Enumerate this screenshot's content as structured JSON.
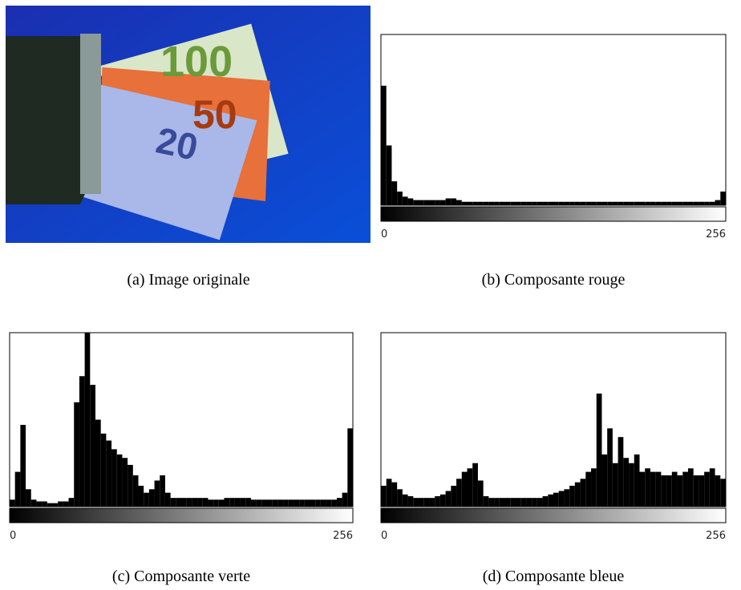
{
  "image_caption": "(a) Image originale",
  "chart_data": [
    {
      "type": "histogram",
      "caption": "(b) Composante rouge",
      "color": "#000000",
      "bins": [
        0,
        4,
        8,
        12,
        16,
        20,
        24,
        28,
        32,
        36,
        40,
        44,
        48,
        52,
        56,
        60,
        64,
        68,
        72,
        76,
        80,
        84,
        88,
        92,
        96,
        100,
        104,
        108,
        112,
        116,
        120,
        124,
        128,
        132,
        136,
        140,
        144,
        148,
        152,
        156,
        160,
        164,
        168,
        172,
        176,
        180,
        184,
        188,
        192,
        196,
        200,
        204,
        208,
        212,
        216,
        220,
        224,
        228,
        232,
        236,
        240,
        244,
        248,
        252,
        256
      ],
      "values": [
        70,
        35,
        14,
        8,
        5,
        4,
        3,
        3,
        3,
        3,
        3,
        3,
        4,
        4,
        3,
        2,
        2,
        2,
        2,
        2,
        2,
        2,
        2,
        2,
        2,
        2,
        2,
        2,
        2,
        2,
        2,
        2,
        2,
        2,
        2,
        2,
        2,
        2,
        2,
        2,
        2,
        2,
        2,
        2,
        2,
        2,
        2,
        2,
        2,
        2,
        2,
        2,
        2,
        2,
        2,
        2,
        2,
        2,
        2,
        2,
        2,
        2,
        3,
        8
      ],
      "xlim": [
        0,
        256
      ],
      "xticks": [
        0,
        256
      ],
      "ylim": [
        0,
        100
      ]
    },
    {
      "type": "histogram",
      "caption": "(c) Composante verte",
      "color": "#000000",
      "bins": [
        0,
        4,
        8,
        12,
        16,
        20,
        24,
        28,
        32,
        36,
        40,
        44,
        48,
        52,
        56,
        60,
        64,
        68,
        72,
        76,
        80,
        84,
        88,
        92,
        96,
        100,
        104,
        108,
        112,
        116,
        120,
        124,
        128,
        132,
        136,
        140,
        144,
        148,
        152,
        156,
        160,
        164,
        168,
        172,
        176,
        180,
        184,
        188,
        192,
        196,
        200,
        204,
        208,
        212,
        216,
        220,
        224,
        228,
        232,
        236,
        240,
        244,
        248,
        252,
        256
      ],
      "values": [
        4,
        20,
        47,
        10,
        4,
        3,
        3,
        2,
        2,
        3,
        3,
        5,
        60,
        75,
        100,
        70,
        50,
        42,
        38,
        33,
        30,
        28,
        24,
        18,
        12,
        8,
        10,
        15,
        18,
        8,
        5,
        5,
        5,
        5,
        5,
        5,
        5,
        4,
        4,
        4,
        5,
        5,
        5,
        5,
        5,
        4,
        4,
        4,
        4,
        4,
        4,
        4,
        4,
        4,
        4,
        4,
        4,
        4,
        4,
        4,
        4,
        5,
        8,
        45
      ],
      "xlim": [
        0,
        256
      ],
      "xticks": [
        0,
        256
      ],
      "ylim": [
        0,
        100
      ]
    },
    {
      "type": "histogram",
      "caption": "(d) Composante bleue",
      "color": "#000000",
      "bins": [
        0,
        4,
        8,
        12,
        16,
        20,
        24,
        28,
        32,
        36,
        40,
        44,
        48,
        52,
        56,
        60,
        64,
        68,
        72,
        76,
        80,
        84,
        88,
        92,
        96,
        100,
        104,
        108,
        112,
        116,
        120,
        124,
        128,
        132,
        136,
        140,
        144,
        148,
        152,
        156,
        160,
        164,
        168,
        172,
        176,
        180,
        184,
        188,
        192,
        196,
        200,
        204,
        208,
        212,
        216,
        220,
        224,
        228,
        232,
        236,
        240,
        244,
        248,
        252,
        256
      ],
      "values": [
        12,
        16,
        14,
        10,
        7,
        6,
        5,
        5,
        5,
        5,
        6,
        7,
        9,
        12,
        16,
        20,
        22,
        25,
        15,
        6,
        5,
        5,
        5,
        5,
        5,
        5,
        5,
        5,
        5,
        5,
        6,
        7,
        8,
        9,
        10,
        12,
        14,
        16,
        20,
        22,
        65,
        30,
        45,
        25,
        40,
        28,
        25,
        30,
        20,
        22,
        20,
        20,
        18,
        18,
        20,
        18,
        20,
        22,
        18,
        18,
        20,
        22,
        18,
        16
      ],
      "xlim": [
        0,
        256
      ],
      "xticks": [
        0,
        256
      ],
      "ylim": [
        0,
        100
      ]
    }
  ]
}
